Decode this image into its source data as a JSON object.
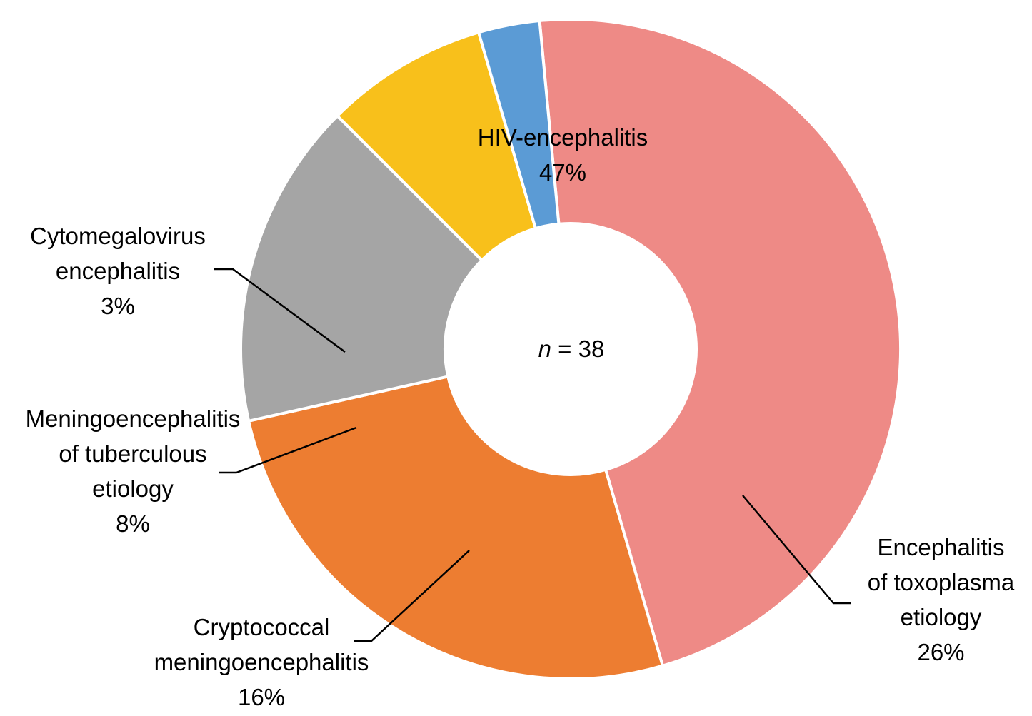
{
  "chart_data": {
    "type": "pie",
    "variant": "donut",
    "title": "",
    "center_label": {
      "variable": "n",
      "operator": "=",
      "value": "38"
    },
    "start_angle_deg": 95.4,
    "direction": "clockwise",
    "gap_color": "#ffffff",
    "slices": [
      {
        "label_lines": [
          "HIV-encephalitis"
        ],
        "percent_label": "47%",
        "value": 47,
        "color": "#ee8a86"
      },
      {
        "label_lines": [
          "Encephalitis",
          "of toxoplasma",
          "etiology"
        ],
        "percent_label": "26%",
        "value": 26,
        "color": "#ed7d31"
      },
      {
        "label_lines": [
          "Cryptococcal",
          "meningoencephalitis"
        ],
        "percent_label": "16%",
        "value": 16,
        "color": "#a5a5a5"
      },
      {
        "label_lines": [
          "Meningoencephalitis",
          "of tuberculous",
          "etiology"
        ],
        "percent_label": "8%",
        "value": 8,
        "color": "#f8c01b"
      },
      {
        "label_lines": [
          "Cytomegalovirus",
          "encephalitis"
        ],
        "percent_label": "3%",
        "value": 3,
        "color": "#5b9bd5"
      }
    ]
  }
}
